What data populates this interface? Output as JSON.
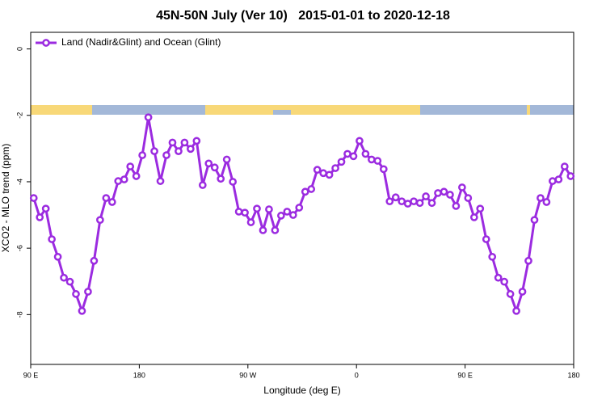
{
  "chart_data": {
    "type": "line",
    "title": "45N-50N July (Ver 10)   2015-01-01 to 2020-12-18",
    "xlabel": "Longitude (deg E)",
    "ylabel": "XCO2 - MLO trend (ppm)",
    "xlim": [
      90,
      540
    ],
    "ylim": [
      -9.5,
      0.5
    ],
    "xticks": [
      {
        "value": 90,
        "label": "90 E"
      },
      {
        "value": 180,
        "label": "180"
      },
      {
        "value": 270,
        "label": "90 W"
      },
      {
        "value": 360,
        "label": "0"
      },
      {
        "value": 450,
        "label": "90 E"
      },
      {
        "value": 540,
        "label": "180"
      }
    ],
    "yticks": [
      0,
      -2,
      -4,
      -6,
      -8
    ],
    "legend": "upper left",
    "x": [
      92.5,
      97.5,
      102.5,
      107.5,
      112.5,
      117.5,
      122.5,
      127.5,
      132.5,
      137.5,
      142.5,
      147.5,
      152.5,
      157.5,
      162.5,
      167.5,
      172.5,
      177.5,
      182.5,
      187.5,
      192.5,
      197.5,
      202.5,
      207.5,
      212.5,
      217.5,
      222.5,
      227.5,
      232.5,
      237.5,
      242.5,
      247.5,
      252.5,
      257.5,
      262.5,
      267.5,
      272.5,
      277.5,
      282.5,
      287.5,
      292.5,
      297.5,
      302.5,
      307.5,
      312.5,
      317.5,
      322.5,
      327.5,
      332.5,
      337.5,
      342.5,
      347.5,
      352.5,
      357.5,
      362.5,
      367.5,
      372.5,
      377.5,
      382.5,
      387.5,
      392.5,
      397.5,
      402.5,
      407.5,
      412.5,
      417.5,
      422.5,
      427.5,
      432.5,
      437.5,
      442.5,
      447.5,
      452.5,
      457.5,
      462.5,
      467.5,
      472.5,
      477.5,
      482.5,
      487.5,
      492.5,
      497.5,
      502.5,
      507.5,
      512.5,
      517.5,
      522.5,
      527.5,
      532.5,
      537.5
    ],
    "series": [
      {
        "name": "Land (Nadir&Glint) and Ocean (Glint)",
        "color": "#9b2be0",
        "values": [
          -4.49,
          -5.07,
          -4.81,
          -5.73,
          -6.26,
          -6.89,
          -7.01,
          -7.38,
          -7.89,
          -7.31,
          -6.38,
          -5.15,
          -4.49,
          -4.61,
          -3.98,
          -3.93,
          -3.54,
          -3.83,
          -3.2,
          -2.06,
          -3.08,
          -3.98,
          -3.2,
          -2.82,
          -3.08,
          -2.82,
          -3.01,
          -2.77,
          -4.1,
          -3.45,
          -3.57,
          -3.91,
          -3.33,
          -4.0,
          -4.9,
          -4.93,
          -5.22,
          -4.81,
          -5.46,
          -4.83,
          -5.46,
          -5.02,
          -4.9,
          -5.0,
          -4.78,
          -4.3,
          -4.22,
          -3.64,
          -3.74,
          -3.79,
          -3.59,
          -3.4,
          -3.16,
          -3.23,
          -2.77,
          -3.16,
          -3.33,
          -3.37,
          -3.62,
          -4.59,
          -4.47,
          -4.59,
          -4.66,
          -4.59,
          -4.64,
          -4.44,
          -4.64,
          -4.34,
          -4.3,
          -4.39,
          -4.73,
          -4.17,
          -4.49,
          -5.07,
          -4.81,
          -5.73,
          -6.26,
          -6.89,
          -7.01,
          -7.38,
          -7.89,
          -7.31,
          -6.38,
          -5.15,
          -4.49,
          -4.61,
          -3.98,
          -3.93,
          -3.54,
          -3.83
        ]
      }
    ]
  }
}
